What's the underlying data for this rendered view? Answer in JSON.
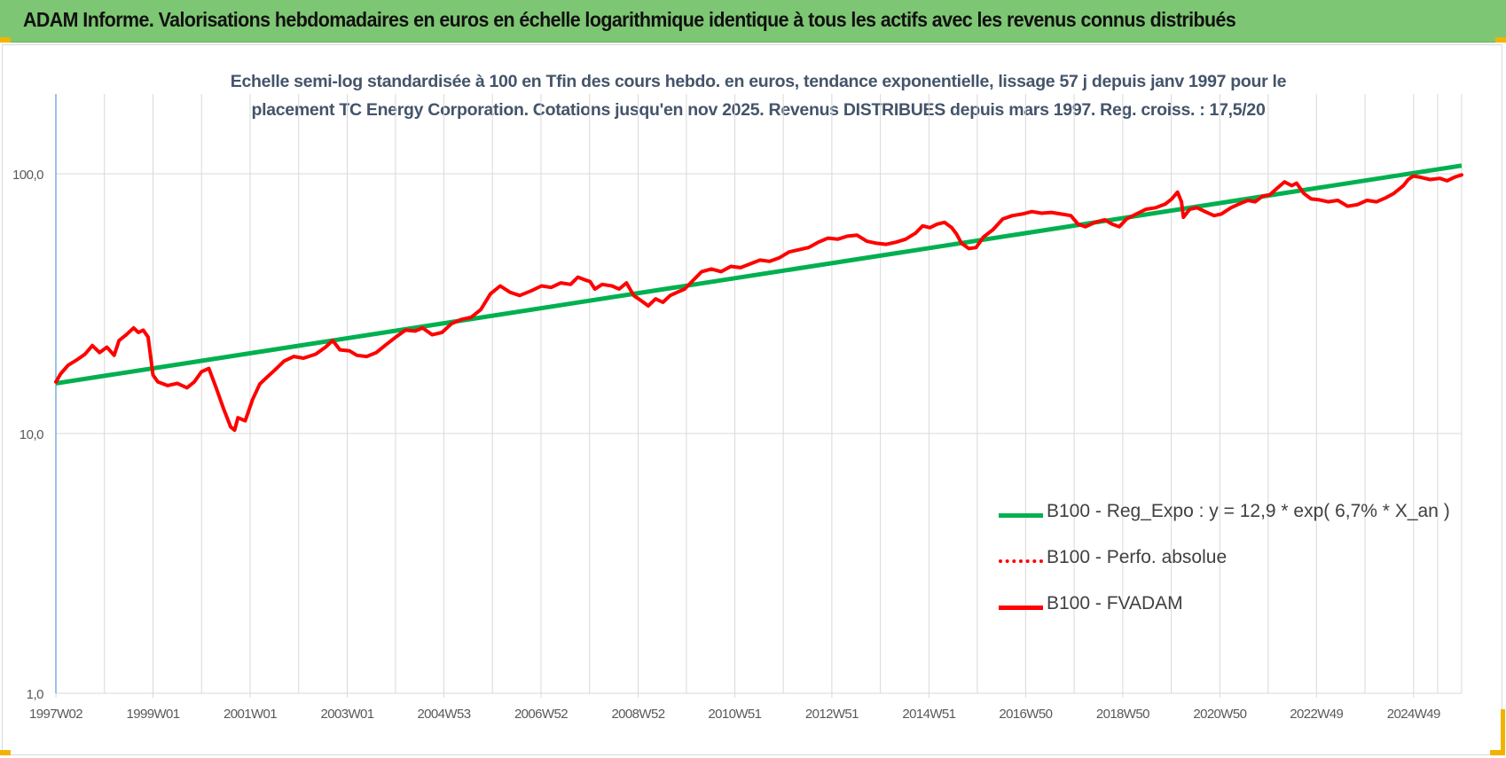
{
  "banner": {
    "title": "ADAM Informe. Valorisations hebdomadaires en euros en échelle logarithmique identique à tous les actifs avec les revenus connus distribués"
  },
  "colors": {
    "banner_bg": "#7dc673",
    "regression": "#00b050",
    "fvadam": "#ff0000",
    "perfo": "#ff0000",
    "grid": "#d9d9d9",
    "axis_text": "#595959",
    "title_text": "#44546a"
  },
  "chart_data": {
    "type": "line",
    "title_line1": "Echelle semi-log standardisée à 100 en Tfin des cours hebdo. en euros, tendance exponentielle, lissage 57 j depuis janv 1997 pour le",
    "title_line2": "placement TC Energy Corporation. Cotations jusqu'en nov 2025. Revenus DISTRIBUES depuis mars 1997. Reg. croiss. : 17,5/20",
    "y_scale": "log",
    "ylim": [
      1,
      200
    ],
    "yticks": [
      1,
      10,
      100
    ],
    "ytick_labels": [
      "1,0",
      "10,0",
      "100,0"
    ],
    "xlim": [
      1997.0,
      2025.95
    ],
    "xticks": [
      1997.0,
      1999.0,
      2001.0,
      2003.0,
      2004.99,
      2006.99,
      2008.99,
      2010.98,
      2012.98,
      2014.98,
      2016.97,
      2018.97,
      2020.97,
      2022.96,
      2024.96
    ],
    "xtick_labels": [
      "1997W02",
      "1999W01",
      "2001W01",
      "2003W01",
      "2004W53",
      "2006W52",
      "2008W52",
      "2010W51",
      "2012W51",
      "2014W51",
      "2016W50",
      "2018W50",
      "2020W50",
      "2022W49",
      "2024W49"
    ],
    "grid": "vertical and horizontal",
    "legend_position": "bottom-right",
    "series": [
      {
        "name": "B100 - Reg_Expo : y = 12,9 * exp( 6,7% *  X_an )",
        "style": "solid",
        "color": "#00b050",
        "points": [
          [
            1997.0,
            15.6
          ],
          [
            2025.95,
            107.5
          ]
        ]
      },
      {
        "name": "B100 - Perfo. absolue",
        "style": "dotted",
        "color": "#ff0000",
        "points": []
      },
      {
        "name": "B100 - FVADAM",
        "style": "solid",
        "color": "#ff0000",
        "points": [
          [
            1997.0,
            15.8
          ],
          [
            1997.1,
            17.0
          ],
          [
            1997.25,
            18.3
          ],
          [
            1997.45,
            19.3
          ],
          [
            1997.6,
            20.2
          ],
          [
            1997.75,
            21.8
          ],
          [
            1997.9,
            20.5
          ],
          [
            1998.05,
            21.5
          ],
          [
            1998.2,
            20.0
          ],
          [
            1998.3,
            22.8
          ],
          [
            1998.45,
            24.0
          ],
          [
            1998.6,
            25.5
          ],
          [
            1998.7,
            24.5
          ],
          [
            1998.8,
            25.0
          ],
          [
            1998.9,
            23.5
          ],
          [
            1999.0,
            16.8
          ],
          [
            1999.1,
            15.8
          ],
          [
            1999.3,
            15.3
          ],
          [
            1999.5,
            15.6
          ],
          [
            1999.7,
            15.0
          ],
          [
            1999.85,
            15.8
          ],
          [
            2000.0,
            17.3
          ],
          [
            2000.15,
            17.8
          ],
          [
            2000.3,
            15.0
          ],
          [
            2000.45,
            12.5
          ],
          [
            2000.6,
            10.6
          ],
          [
            2000.68,
            10.3
          ],
          [
            2000.75,
            11.5
          ],
          [
            2000.9,
            11.2
          ],
          [
            2001.05,
            13.5
          ],
          [
            2001.2,
            15.5
          ],
          [
            2001.35,
            16.5
          ],
          [
            2001.5,
            17.5
          ],
          [
            2001.7,
            19.0
          ],
          [
            2001.9,
            19.8
          ],
          [
            2002.1,
            19.5
          ],
          [
            2002.35,
            20.2
          ],
          [
            2002.55,
            21.5
          ],
          [
            2002.7,
            22.8
          ],
          [
            2002.85,
            21.0
          ],
          [
            2003.05,
            20.8
          ],
          [
            2003.2,
            20.0
          ],
          [
            2003.4,
            19.8
          ],
          [
            2003.6,
            20.5
          ],
          [
            2003.8,
            22.0
          ],
          [
            2004.0,
            23.5
          ],
          [
            2004.2,
            25.0
          ],
          [
            2004.4,
            24.8
          ],
          [
            2004.55,
            25.5
          ],
          [
            2004.75,
            24.0
          ],
          [
            2004.95,
            24.5
          ],
          [
            2005.15,
            26.5
          ],
          [
            2005.35,
            27.5
          ],
          [
            2005.55,
            28.0
          ],
          [
            2005.75,
            30.0
          ],
          [
            2005.95,
            34.5
          ],
          [
            2006.15,
            37.0
          ],
          [
            2006.35,
            35.0
          ],
          [
            2006.55,
            34.0
          ],
          [
            2006.8,
            35.5
          ],
          [
            2007.0,
            37.0
          ],
          [
            2007.2,
            36.5
          ],
          [
            2007.4,
            38.0
          ],
          [
            2007.6,
            37.5
          ],
          [
            2007.75,
            40.0
          ],
          [
            2007.9,
            39.0
          ],
          [
            2008.0,
            38.5
          ],
          [
            2008.1,
            36.0
          ],
          [
            2008.25,
            37.5
          ],
          [
            2008.45,
            37.0
          ],
          [
            2008.6,
            36.0
          ],
          [
            2008.75,
            38.0
          ],
          [
            2008.9,
            34.0
          ],
          [
            2009.05,
            32.5
          ],
          [
            2009.2,
            31.0
          ],
          [
            2009.35,
            33.0
          ],
          [
            2009.5,
            32.0
          ],
          [
            2009.65,
            34.0
          ],
          [
            2009.8,
            35.0
          ],
          [
            2009.95,
            36.0
          ],
          [
            2010.1,
            38.5
          ],
          [
            2010.3,
            42.0
          ],
          [
            2010.5,
            43.0
          ],
          [
            2010.7,
            42.0
          ],
          [
            2010.9,
            44.0
          ],
          [
            2011.1,
            43.5
          ],
          [
            2011.3,
            45.0
          ],
          [
            2011.5,
            46.5
          ],
          [
            2011.7,
            46.0
          ],
          [
            2011.9,
            47.5
          ],
          [
            2012.1,
            50.0
          ],
          [
            2012.3,
            51.0
          ],
          [
            2012.5,
            52.0
          ],
          [
            2012.7,
            54.5
          ],
          [
            2012.9,
            56.5
          ],
          [
            2013.1,
            56.0
          ],
          [
            2013.3,
            57.5
          ],
          [
            2013.5,
            58.0
          ],
          [
            2013.7,
            55.0
          ],
          [
            2013.9,
            54.0
          ],
          [
            2014.1,
            53.5
          ],
          [
            2014.3,
            54.5
          ],
          [
            2014.5,
            56.0
          ],
          [
            2014.7,
            59.0
          ],
          [
            2014.85,
            63.0
          ],
          [
            2015.0,
            62.0
          ],
          [
            2015.15,
            64.0
          ],
          [
            2015.3,
            65.0
          ],
          [
            2015.45,
            62.0
          ],
          [
            2015.55,
            58.5
          ],
          [
            2015.65,
            54.0
          ],
          [
            2015.8,
            51.5
          ],
          [
            2015.95,
            52.0
          ],
          [
            2016.1,
            57.0
          ],
          [
            2016.3,
            61.0
          ],
          [
            2016.5,
            67.0
          ],
          [
            2016.7,
            69.0
          ],
          [
            2016.9,
            70.0
          ],
          [
            2017.1,
            71.5
          ],
          [
            2017.3,
            70.5
          ],
          [
            2017.5,
            71.0
          ],
          [
            2017.7,
            70.0
          ],
          [
            2017.9,
            69.0
          ],
          [
            2018.05,
            64.0
          ],
          [
            2018.2,
            62.5
          ],
          [
            2018.4,
            65.0
          ],
          [
            2018.6,
            66.5
          ],
          [
            2018.75,
            64.0
          ],
          [
            2018.9,
            62.5
          ],
          [
            2019.05,
            67.0
          ],
          [
            2019.25,
            70.0
          ],
          [
            2019.45,
            73.0
          ],
          [
            2019.65,
            74.0
          ],
          [
            2019.85,
            76.5
          ],
          [
            2019.98,
            80.0
          ],
          [
            2020.1,
            85.0
          ],
          [
            2020.18,
            78.0
          ],
          [
            2020.22,
            68.0
          ],
          [
            2020.35,
            73.0
          ],
          [
            2020.5,
            74.0
          ],
          [
            2020.7,
            71.0
          ],
          [
            2020.85,
            69.0
          ],
          [
            2021.0,
            70.0
          ],
          [
            2021.2,
            74.0
          ],
          [
            2021.4,
            77.0
          ],
          [
            2021.55,
            79.0
          ],
          [
            2021.7,
            78.0
          ],
          [
            2021.85,
            82.0
          ],
          [
            2022.0,
            83.0
          ],
          [
            2022.15,
            88.0
          ],
          [
            2022.3,
            93.0
          ],
          [
            2022.45,
            90.0
          ],
          [
            2022.55,
            92.0
          ],
          [
            2022.7,
            84.0
          ],
          [
            2022.85,
            80.0
          ],
          [
            2023.0,
            79.5
          ],
          [
            2023.2,
            78.0
          ],
          [
            2023.4,
            79.0
          ],
          [
            2023.6,
            75.0
          ],
          [
            2023.8,
            76.0
          ],
          [
            2024.0,
            79.0
          ],
          [
            2024.2,
            78.0
          ],
          [
            2024.4,
            81.0
          ],
          [
            2024.55,
            84.0
          ],
          [
            2024.75,
            90.0
          ],
          [
            2024.85,
            95.0
          ],
          [
            2024.95,
            98.0
          ],
          [
            2025.1,
            97.0
          ],
          [
            2025.3,
            95.0
          ],
          [
            2025.5,
            96.0
          ],
          [
            2025.65,
            94.0
          ],
          [
            2025.8,
            97.0
          ],
          [
            2025.95,
            99.0
          ]
        ]
      }
    ]
  }
}
